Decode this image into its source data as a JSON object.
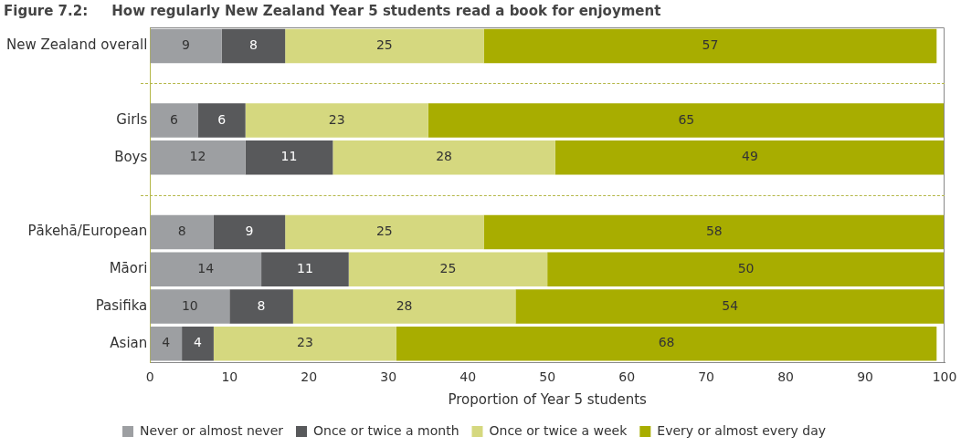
{
  "chart_data": {
    "type": "bar",
    "orientation": "horizontal",
    "stacked": true,
    "title": "Figure 7.2:     How regularly New Zealand Year 5 students read a book for enjoyment",
    "xlabel": "Proportion of Year 5 students",
    "categories": [
      "New Zealand overall",
      null,
      "Girls",
      "Boys",
      null,
      "Pākehā/European",
      "Māori",
      "Pasifika",
      "Asian"
    ],
    "series": [
      {
        "name": "Never or almost never",
        "color": "#9d9fa2",
        "values": [
          9,
          null,
          6,
          12,
          null,
          8,
          14,
          10,
          4
        ]
      },
      {
        "name": "Once or twice a month",
        "color": "#58595b",
        "values": [
          8,
          null,
          6,
          11,
          null,
          9,
          11,
          8,
          4
        ]
      },
      {
        "name": "Once or twice a week",
        "color": "#d5d87f",
        "values": [
          25,
          null,
          23,
          28,
          null,
          25,
          25,
          28,
          23
        ]
      },
      {
        "name": "Every or almost every day",
        "color": "#a8ad00",
        "values": [
          57,
          null,
          65,
          49,
          null,
          58,
          50,
          54,
          68
        ]
      }
    ],
    "xlim": [
      0,
      100
    ],
    "xticks": [
      0,
      10,
      20,
      30,
      40,
      50,
      60,
      70,
      80,
      90,
      100
    ],
    "data_labels": true,
    "legend": "bottom"
  }
}
